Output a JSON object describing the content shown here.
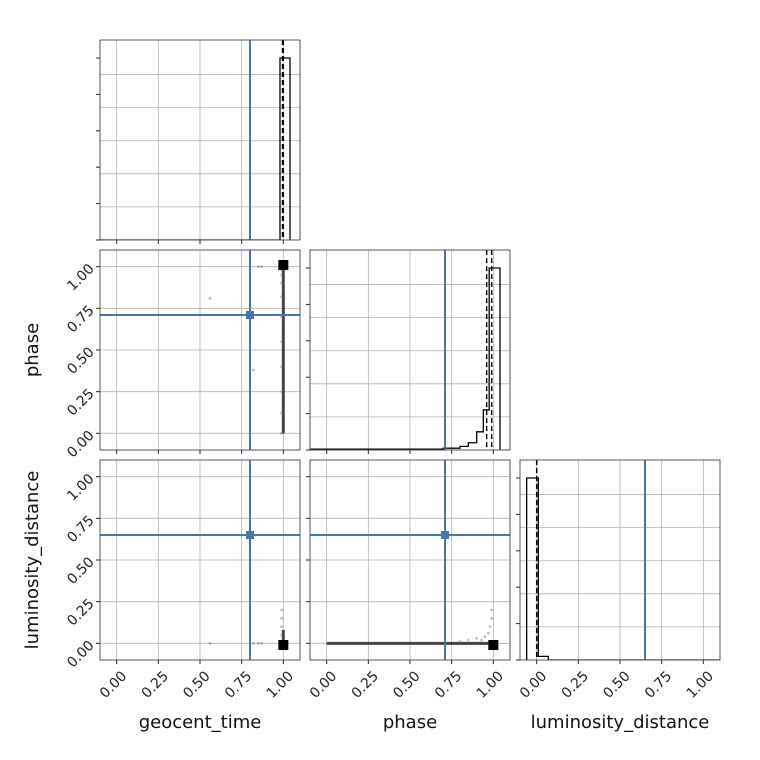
{
  "chart_data": {
    "type": "corner",
    "parameters": [
      "geocent_time",
      "phase",
      "luminosity_distance"
    ],
    "range": [
      -0.1,
      1.1
    ],
    "ticks": [
      "0.00",
      "0.25",
      "0.50",
      "0.75",
      "1.00"
    ],
    "grid": true,
    "truth_color": "#4477aa",
    "truths": {
      "geocent_time": 0.8,
      "phase": 0.71,
      "luminosity_distance": 0.65
    },
    "histograms": {
      "geocent_time": {
        "bins": [
          -0.1,
          0.98,
          1.04
        ],
        "counts": [
          0,
          1.0
        ],
        "quantiles": [
          0.995,
          1.0
        ]
      },
      "phase": {
        "bins": [
          -0.1,
          0.7,
          0.8,
          0.85,
          0.9,
          0.94,
          0.975,
          1.04
        ],
        "counts": [
          0.005,
          0.01,
          0.02,
          0.04,
          0.1,
          0.22,
          1.0
        ],
        "quantiles": [
          0.96,
          0.99
        ]
      },
      "luminosity_distance": {
        "bins": [
          -0.06,
          0.01,
          0.07,
          1.1
        ],
        "counts": [
          1.0,
          0.02,
          0
        ],
        "quantiles": [
          -0.0,
          0.0
        ]
      }
    },
    "scatter": [
      {
        "x": "geocent_time",
        "y": "phase",
        "points": [
          [
            0.56,
            0.81
          ],
          [
            0.82,
            0.38
          ],
          [
            0.85,
            1.0
          ],
          [
            0.87,
            1.0
          ],
          [
            0.99,
            0.0
          ],
          [
            0.99,
            0.12
          ],
          [
            0.99,
            0.25
          ],
          [
            0.99,
            0.4
          ],
          [
            0.99,
            0.55
          ],
          [
            0.99,
            0.7
          ],
          [
            0.99,
            0.82
          ],
          [
            0.99,
            0.9
          ],
          [
            0.99,
            0.95
          ],
          [
            0.99,
            0.98
          ]
        ],
        "dense": {
          "type": "vline",
          "x": 1.0,
          "y_from": 0.0,
          "y_to": 1.0
        },
        "peak": [
          1.0,
          1.01
        ]
      },
      {
        "x": "geocent_time",
        "y": "luminosity_distance",
        "points": [
          [
            0.56,
            0.0
          ],
          [
            0.82,
            0.0
          ],
          [
            0.85,
            0.0
          ],
          [
            0.87,
            0.0
          ],
          [
            0.99,
            0.05
          ],
          [
            0.99,
            0.1
          ],
          [
            0.99,
            0.15
          ],
          [
            0.99,
            0.2
          ]
        ],
        "dense": {
          "type": "vline",
          "x": 1.0,
          "y_from": -0.01,
          "y_to": 0.08
        },
        "peak": [
          1.0,
          -0.01
        ]
      },
      {
        "x": "phase",
        "y": "luminosity_distance",
        "points": [
          [
            0.8,
            0.01
          ],
          [
            0.85,
            0.02
          ],
          [
            0.9,
            0.03
          ],
          [
            0.93,
            0.02
          ],
          [
            0.95,
            0.04
          ],
          [
            0.97,
            0.06
          ],
          [
            0.98,
            0.1
          ],
          [
            0.99,
            0.15
          ],
          [
            0.99,
            0.2
          ]
        ],
        "dense": {
          "type": "hline",
          "y": 0.0,
          "x_from": 0.0,
          "x_to": 1.0
        },
        "peak": [
          1.0,
          -0.01
        ]
      }
    ]
  }
}
